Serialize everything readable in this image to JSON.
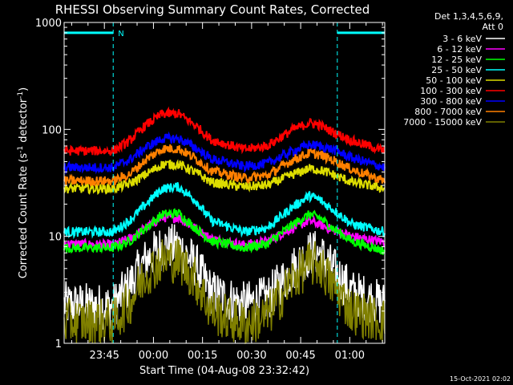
{
  "chart_data": {
    "type": "line",
    "title": "RHESSI Observing Summary Count Rates, Corrected",
    "xlabel": "Start Time (04-Aug-08 23:32:42)",
    "ylabel_main": "Corrected Count Rate (s",
    "ylabel_sup1": "-1",
    "ylabel_mid": " detector",
    "ylabel_sup2": "-1",
    "ylabel_end": ")",
    "y_scale": "log",
    "ylim": [
      1,
      1000
    ],
    "x_unit": "minutes since 23:32:42",
    "xlim": [
      0,
      98
    ],
    "x_ticks": [
      {
        "t": 12.3,
        "label": "23:45"
      },
      {
        "t": 27.3,
        "label": "00:00"
      },
      {
        "t": 42.3,
        "label": "00:15"
      },
      {
        "t": 57.3,
        "label": "00:30"
      },
      {
        "t": 72.3,
        "label": "00:45"
      },
      {
        "t": 87.3,
        "label": "01:00"
      }
    ],
    "y_ticks": [
      {
        "v": 1,
        "label": "1"
      },
      {
        "v": 10,
        "label": "10"
      },
      {
        "v": 100,
        "label": "100"
      },
      {
        "v": 1000,
        "label": "1000"
      }
    ],
    "legend": {
      "placement": "right",
      "header1": "Det 1,3,4,5,6,9,",
      "header2": "Att 0"
    },
    "markers": {
      "vlines": [
        15,
        83.5,
        98
      ],
      "night_bars": [
        [
          0,
          15
        ],
        [
          83.5,
          98
        ]
      ],
      "night_label": "N",
      "night_level": 800
    },
    "series": [
      {
        "name": "3 - 6 keV",
        "color": "#ffffff",
        "points": [
          [
            0,
            2.3
          ],
          [
            15,
            2.2
          ],
          [
            20,
            3.5
          ],
          [
            25,
            6
          ],
          [
            30,
            8
          ],
          [
            35,
            8
          ],
          [
            40,
            5.5
          ],
          [
            45,
            3
          ],
          [
            55,
            2.3
          ],
          [
            62,
            2.6
          ],
          [
            70,
            5
          ],
          [
            75,
            7
          ],
          [
            78,
            7
          ],
          [
            82,
            5
          ],
          [
            88,
            3
          ],
          [
            98,
            2.3
          ]
        ]
      },
      {
        "name": "6 - 12 keV",
        "color": "#ff00ff",
        "points": [
          [
            0,
            8.5
          ],
          [
            15,
            8.3
          ],
          [
            20,
            9.5
          ],
          [
            25,
            12
          ],
          [
            30,
            15
          ],
          [
            35,
            15
          ],
          [
            40,
            12
          ],
          [
            45,
            9.5
          ],
          [
            55,
            8.3
          ],
          [
            62,
            9
          ],
          [
            70,
            12
          ],
          [
            75,
            14
          ],
          [
            78,
            13
          ],
          [
            82,
            11.5
          ],
          [
            88,
            10
          ],
          [
            98,
            8.8
          ]
        ]
      },
      {
        "name": "12 - 25 keV",
        "color": "#00ff00",
        "points": [
          [
            0,
            7.8
          ],
          [
            15,
            7.8
          ],
          [
            20,
            9
          ],
          [
            25,
            12
          ],
          [
            30,
            16
          ],
          [
            35,
            16.5
          ],
          [
            40,
            12
          ],
          [
            45,
            9
          ],
          [
            55,
            7.8
          ],
          [
            62,
            8.5
          ],
          [
            70,
            13
          ],
          [
            75,
            16
          ],
          [
            78,
            15
          ],
          [
            82,
            12
          ],
          [
            88,
            9
          ],
          [
            98,
            7.3
          ]
        ]
      },
      {
        "name": "25 - 50 keV",
        "color": "#00ffff",
        "points": [
          [
            0,
            11
          ],
          [
            15,
            11
          ],
          [
            20,
            14
          ],
          [
            25,
            20
          ],
          [
            30,
            28
          ],
          [
            35,
            29
          ],
          [
            40,
            22
          ],
          [
            45,
            14
          ],
          [
            55,
            11
          ],
          [
            62,
            12
          ],
          [
            70,
            19
          ],
          [
            75,
            24
          ],
          [
            78,
            22
          ],
          [
            82,
            18
          ],
          [
            88,
            13
          ],
          [
            98,
            11
          ]
        ]
      },
      {
        "name": "50 - 100 keV",
        "color": "#dddd00",
        "points": [
          [
            0,
            28
          ],
          [
            15,
            28
          ],
          [
            20,
            31
          ],
          [
            25,
            38
          ],
          [
            30,
            47
          ],
          [
            35,
            47
          ],
          [
            40,
            40
          ],
          [
            45,
            32
          ],
          [
            55,
            29
          ],
          [
            62,
            30
          ],
          [
            70,
            38
          ],
          [
            75,
            43
          ],
          [
            78,
            42
          ],
          [
            82,
            38
          ],
          [
            88,
            32
          ],
          [
            98,
            28
          ]
        ]
      },
      {
        "name": "100 - 300 keV",
        "color": "#ff0000",
        "points": [
          [
            0,
            63
          ],
          [
            15,
            63
          ],
          [
            20,
            78
          ],
          [
            25,
            110
          ],
          [
            30,
            140
          ],
          [
            35,
            140
          ],
          [
            40,
            110
          ],
          [
            45,
            80
          ],
          [
            55,
            65
          ],
          [
            62,
            70
          ],
          [
            70,
            100
          ],
          [
            75,
            115
          ],
          [
            78,
            110
          ],
          [
            82,
            95
          ],
          [
            88,
            78
          ],
          [
            98,
            63
          ]
        ]
      },
      {
        "name": "300 - 800 keV",
        "color": "#0000ff",
        "points": [
          [
            0,
            44
          ],
          [
            15,
            44
          ],
          [
            20,
            52
          ],
          [
            25,
            68
          ],
          [
            30,
            82
          ],
          [
            35,
            82
          ],
          [
            40,
            68
          ],
          [
            45,
            53
          ],
          [
            55,
            45
          ],
          [
            62,
            48
          ],
          [
            70,
            63
          ],
          [
            75,
            72
          ],
          [
            78,
            70
          ],
          [
            82,
            65
          ],
          [
            88,
            54
          ],
          [
            98,
            44
          ]
        ]
      },
      {
        "name": "800 - 7000 keV",
        "color": "#ff8000",
        "points": [
          [
            0,
            33
          ],
          [
            15,
            33
          ],
          [
            20,
            38
          ],
          [
            25,
            52
          ],
          [
            30,
            66
          ],
          [
            35,
            66
          ],
          [
            40,
            54
          ],
          [
            45,
            41
          ],
          [
            55,
            35
          ],
          [
            62,
            37
          ],
          [
            70,
            52
          ],
          [
            75,
            60
          ],
          [
            78,
            58
          ],
          [
            82,
            52
          ],
          [
            88,
            42
          ],
          [
            98,
            33
          ]
        ]
      },
      {
        "name": "7000 - 15000 keV",
        "color": "#808000",
        "points": [
          [
            0,
            1.6
          ],
          [
            15,
            1.6
          ],
          [
            20,
            2.4
          ],
          [
            25,
            4.5
          ],
          [
            30,
            6
          ],
          [
            35,
            6
          ],
          [
            40,
            4
          ],
          [
            45,
            2
          ],
          [
            55,
            1.5
          ],
          [
            62,
            1.8
          ],
          [
            70,
            4
          ],
          [
            75,
            5.5
          ],
          [
            78,
            5.5
          ],
          [
            82,
            3.5
          ],
          [
            88,
            2
          ],
          [
            98,
            1.6
          ]
        ]
      }
    ]
  },
  "footer": {
    "timestamp": "15-Oct-2021 02:02"
  }
}
